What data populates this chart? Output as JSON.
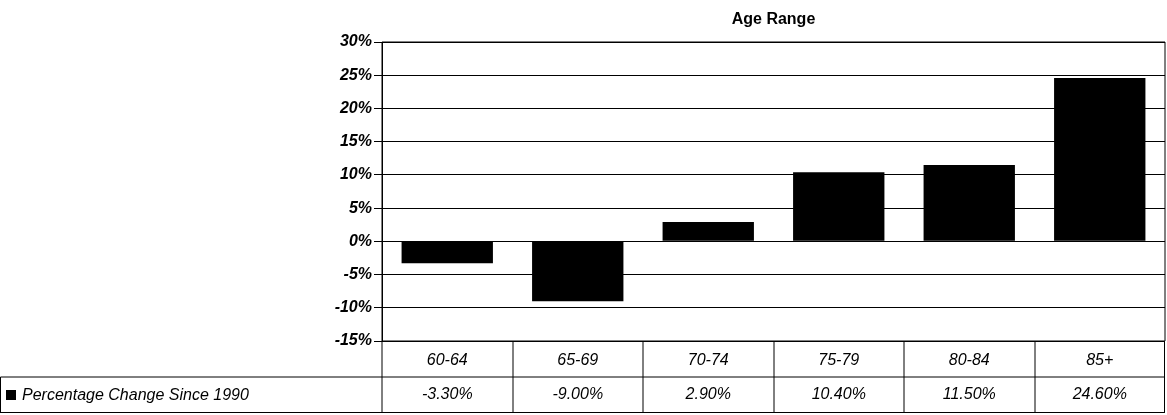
{
  "chart_data": {
    "type": "bar",
    "title": "Age Range",
    "categories": [
      "60-64",
      "65-69",
      "70-74",
      "75-79",
      "80-84",
      "85+"
    ],
    "series": [
      {
        "name": "Percentage Change Since 1990",
        "color": "#000000",
        "values": [
          -3.3,
          -9.0,
          2.9,
          10.4,
          11.5,
          24.6
        ],
        "value_labels": [
          "-3.30%",
          "-9.00%",
          "2.90%",
          "10.40%",
          "11.50%",
          "24.60%"
        ]
      }
    ],
    "ylim": [
      -15,
      30
    ],
    "yticks": [
      {
        "value": -15,
        "label": "-15%"
      },
      {
        "value": -10,
        "label": "-10%"
      },
      {
        "value": -5,
        "label": "-5%"
      },
      {
        "value": 0,
        "label": "0%"
      },
      {
        "value": 5,
        "label": "5%"
      },
      {
        "value": 10,
        "label": "10%"
      },
      {
        "value": 15,
        "label": "15%"
      },
      {
        "value": 20,
        "label": "20%"
      },
      {
        "value": 25,
        "label": "25%"
      },
      {
        "value": 30,
        "label": "30%"
      }
    ],
    "grid": "y",
    "legend": "bottom left"
  }
}
